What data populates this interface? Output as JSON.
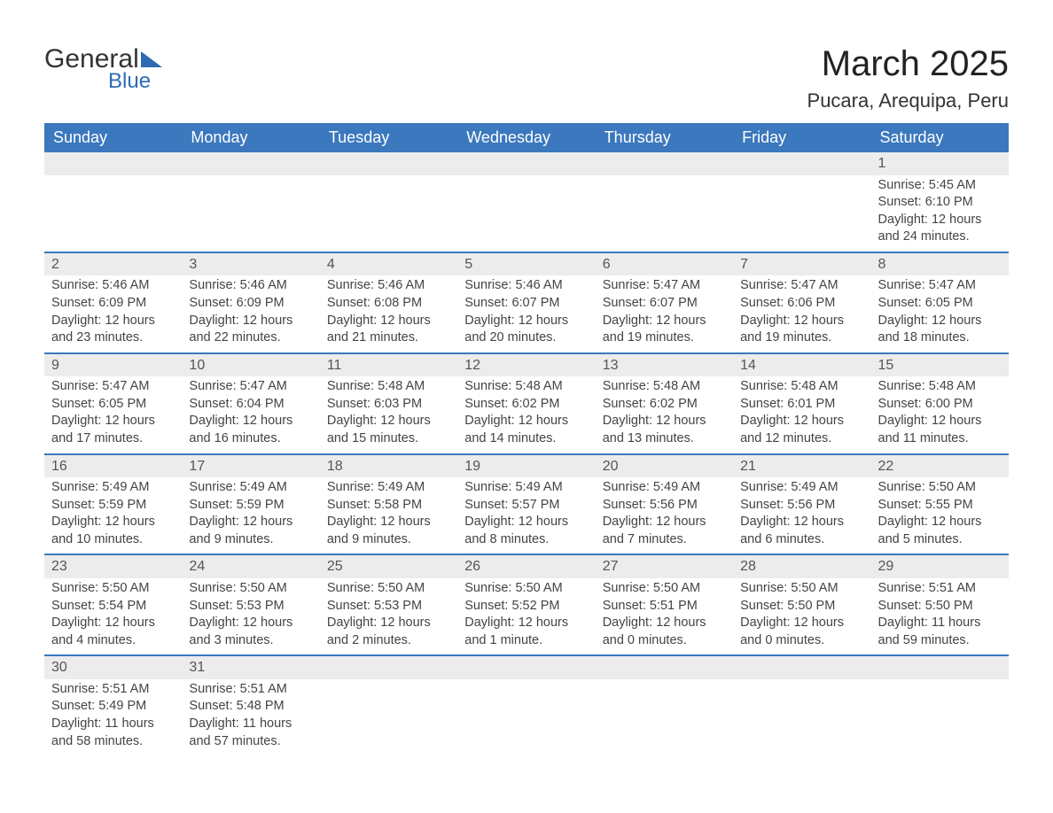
{
  "logo": {
    "text1": "General",
    "text2": "Blue"
  },
  "title": "March 2025",
  "location": "Pucara, Arequipa, Peru",
  "colors": {
    "header_bg": "#3b78bd",
    "header_text": "#ffffff",
    "daynum_bg": "#ececec",
    "row_border": "#3b78bd",
    "body_text": "#444444",
    "logo_accent": "#2d6bb4"
  },
  "typography": {
    "title_fontsize": 40,
    "location_fontsize": 22,
    "header_fontsize": 18,
    "cell_fontsize": 14.5
  },
  "layout": {
    "columns": 7,
    "rows": 6
  },
  "day_headers": [
    "Sunday",
    "Monday",
    "Tuesday",
    "Wednesday",
    "Thursday",
    "Friday",
    "Saturday"
  ],
  "weeks": [
    [
      null,
      null,
      null,
      null,
      null,
      null,
      {
        "n": "1",
        "sr": "Sunrise: 5:45 AM",
        "ss": "Sunset: 6:10 PM",
        "d1": "Daylight: 12 hours",
        "d2": "and 24 minutes."
      }
    ],
    [
      {
        "n": "2",
        "sr": "Sunrise: 5:46 AM",
        "ss": "Sunset: 6:09 PM",
        "d1": "Daylight: 12 hours",
        "d2": "and 23 minutes."
      },
      {
        "n": "3",
        "sr": "Sunrise: 5:46 AM",
        "ss": "Sunset: 6:09 PM",
        "d1": "Daylight: 12 hours",
        "d2": "and 22 minutes."
      },
      {
        "n": "4",
        "sr": "Sunrise: 5:46 AM",
        "ss": "Sunset: 6:08 PM",
        "d1": "Daylight: 12 hours",
        "d2": "and 21 minutes."
      },
      {
        "n": "5",
        "sr": "Sunrise: 5:46 AM",
        "ss": "Sunset: 6:07 PM",
        "d1": "Daylight: 12 hours",
        "d2": "and 20 minutes."
      },
      {
        "n": "6",
        "sr": "Sunrise: 5:47 AM",
        "ss": "Sunset: 6:07 PM",
        "d1": "Daylight: 12 hours",
        "d2": "and 19 minutes."
      },
      {
        "n": "7",
        "sr": "Sunrise: 5:47 AM",
        "ss": "Sunset: 6:06 PM",
        "d1": "Daylight: 12 hours",
        "d2": "and 19 minutes."
      },
      {
        "n": "8",
        "sr": "Sunrise: 5:47 AM",
        "ss": "Sunset: 6:05 PM",
        "d1": "Daylight: 12 hours",
        "d2": "and 18 minutes."
      }
    ],
    [
      {
        "n": "9",
        "sr": "Sunrise: 5:47 AM",
        "ss": "Sunset: 6:05 PM",
        "d1": "Daylight: 12 hours",
        "d2": "and 17 minutes."
      },
      {
        "n": "10",
        "sr": "Sunrise: 5:47 AM",
        "ss": "Sunset: 6:04 PM",
        "d1": "Daylight: 12 hours",
        "d2": "and 16 minutes."
      },
      {
        "n": "11",
        "sr": "Sunrise: 5:48 AM",
        "ss": "Sunset: 6:03 PM",
        "d1": "Daylight: 12 hours",
        "d2": "and 15 minutes."
      },
      {
        "n": "12",
        "sr": "Sunrise: 5:48 AM",
        "ss": "Sunset: 6:02 PM",
        "d1": "Daylight: 12 hours",
        "d2": "and 14 minutes."
      },
      {
        "n": "13",
        "sr": "Sunrise: 5:48 AM",
        "ss": "Sunset: 6:02 PM",
        "d1": "Daylight: 12 hours",
        "d2": "and 13 minutes."
      },
      {
        "n": "14",
        "sr": "Sunrise: 5:48 AM",
        "ss": "Sunset: 6:01 PM",
        "d1": "Daylight: 12 hours",
        "d2": "and 12 minutes."
      },
      {
        "n": "15",
        "sr": "Sunrise: 5:48 AM",
        "ss": "Sunset: 6:00 PM",
        "d1": "Daylight: 12 hours",
        "d2": "and 11 minutes."
      }
    ],
    [
      {
        "n": "16",
        "sr": "Sunrise: 5:49 AM",
        "ss": "Sunset: 5:59 PM",
        "d1": "Daylight: 12 hours",
        "d2": "and 10 minutes."
      },
      {
        "n": "17",
        "sr": "Sunrise: 5:49 AM",
        "ss": "Sunset: 5:59 PM",
        "d1": "Daylight: 12 hours",
        "d2": "and 9 minutes."
      },
      {
        "n": "18",
        "sr": "Sunrise: 5:49 AM",
        "ss": "Sunset: 5:58 PM",
        "d1": "Daylight: 12 hours",
        "d2": "and 9 minutes."
      },
      {
        "n": "19",
        "sr": "Sunrise: 5:49 AM",
        "ss": "Sunset: 5:57 PM",
        "d1": "Daylight: 12 hours",
        "d2": "and 8 minutes."
      },
      {
        "n": "20",
        "sr": "Sunrise: 5:49 AM",
        "ss": "Sunset: 5:56 PM",
        "d1": "Daylight: 12 hours",
        "d2": "and 7 minutes."
      },
      {
        "n": "21",
        "sr": "Sunrise: 5:49 AM",
        "ss": "Sunset: 5:56 PM",
        "d1": "Daylight: 12 hours",
        "d2": "and 6 minutes."
      },
      {
        "n": "22",
        "sr": "Sunrise: 5:50 AM",
        "ss": "Sunset: 5:55 PM",
        "d1": "Daylight: 12 hours",
        "d2": "and 5 minutes."
      }
    ],
    [
      {
        "n": "23",
        "sr": "Sunrise: 5:50 AM",
        "ss": "Sunset: 5:54 PM",
        "d1": "Daylight: 12 hours",
        "d2": "and 4 minutes."
      },
      {
        "n": "24",
        "sr": "Sunrise: 5:50 AM",
        "ss": "Sunset: 5:53 PM",
        "d1": "Daylight: 12 hours",
        "d2": "and 3 minutes."
      },
      {
        "n": "25",
        "sr": "Sunrise: 5:50 AM",
        "ss": "Sunset: 5:53 PM",
        "d1": "Daylight: 12 hours",
        "d2": "and 2 minutes."
      },
      {
        "n": "26",
        "sr": "Sunrise: 5:50 AM",
        "ss": "Sunset: 5:52 PM",
        "d1": "Daylight: 12 hours",
        "d2": "and 1 minute."
      },
      {
        "n": "27",
        "sr": "Sunrise: 5:50 AM",
        "ss": "Sunset: 5:51 PM",
        "d1": "Daylight: 12 hours",
        "d2": "and 0 minutes."
      },
      {
        "n": "28",
        "sr": "Sunrise: 5:50 AM",
        "ss": "Sunset: 5:50 PM",
        "d1": "Daylight: 12 hours",
        "d2": "and 0 minutes."
      },
      {
        "n": "29",
        "sr": "Sunrise: 5:51 AM",
        "ss": "Sunset: 5:50 PM",
        "d1": "Daylight: 11 hours",
        "d2": "and 59 minutes."
      }
    ],
    [
      {
        "n": "30",
        "sr": "Sunrise: 5:51 AM",
        "ss": "Sunset: 5:49 PM",
        "d1": "Daylight: 11 hours",
        "d2": "and 58 minutes."
      },
      {
        "n": "31",
        "sr": "Sunrise: 5:51 AM",
        "ss": "Sunset: 5:48 PM",
        "d1": "Daylight: 11 hours",
        "d2": "and 57 minutes."
      },
      null,
      null,
      null,
      null,
      null
    ]
  ]
}
